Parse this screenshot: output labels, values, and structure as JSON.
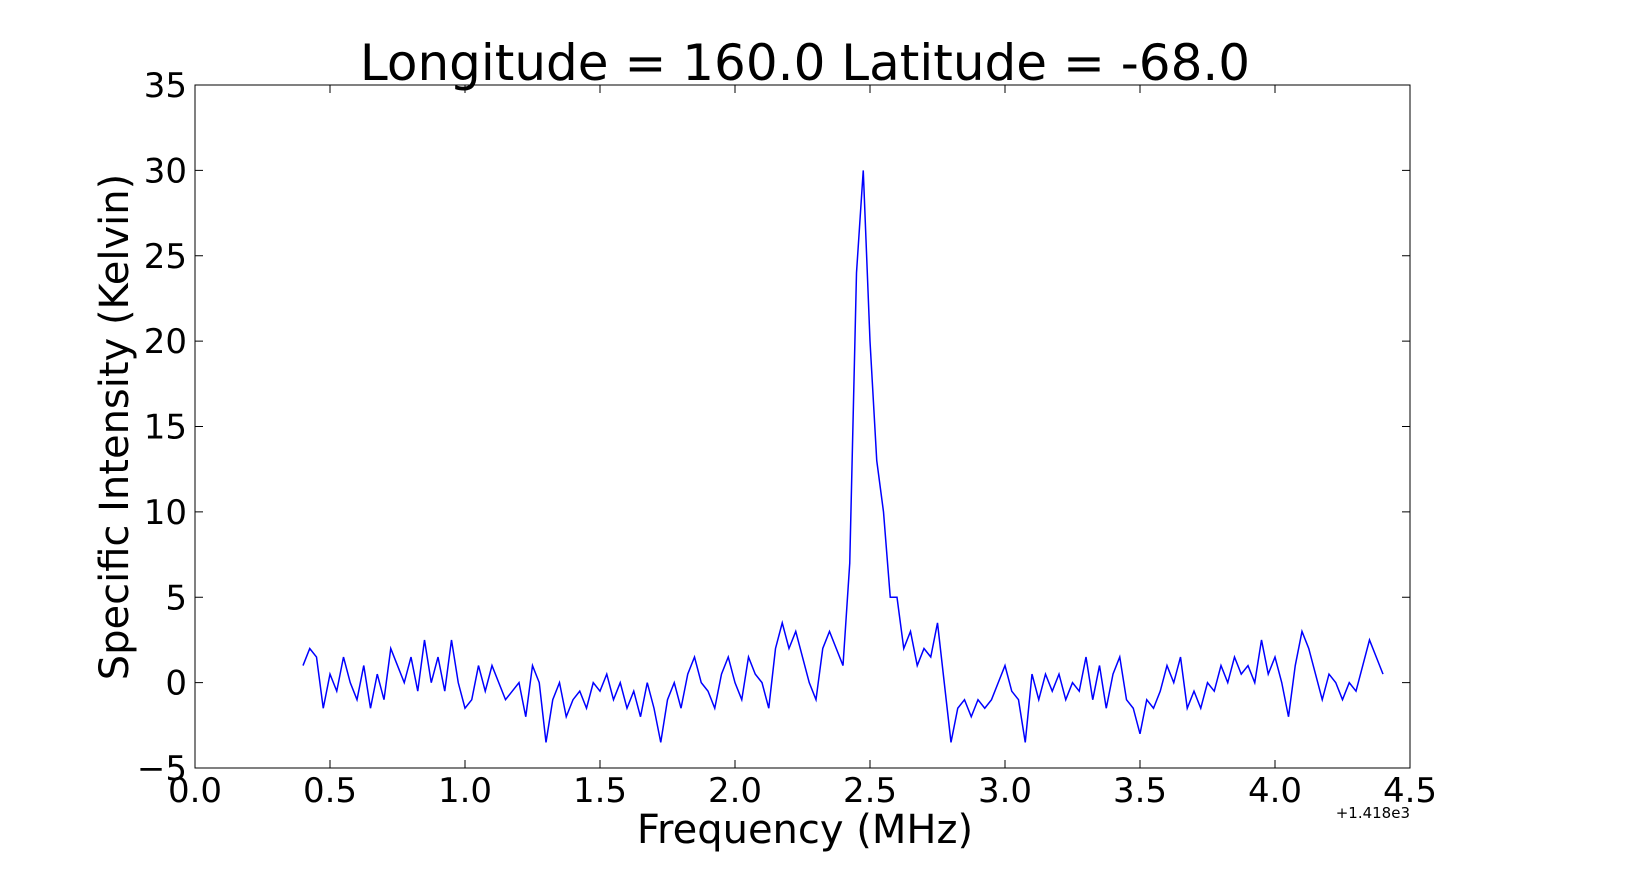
{
  "chart_data": {
    "type": "line",
    "title": "Longitude = 160.0 Latitude = -68.0",
    "x_label": "Frequency (MHz)",
    "y_label": "Specific Intensity (Kelvin)",
    "x_offset_label": "+1.418e3",
    "x": [
      0.4,
      0.425,
      0.45,
      0.475,
      0.5,
      0.525,
      0.55,
      0.575,
      0.6,
      0.625,
      0.65,
      0.675,
      0.7,
      0.725,
      0.75,
      0.775,
      0.8,
      0.825,
      0.85,
      0.875,
      0.9,
      0.925,
      0.95,
      0.975,
      1.0,
      1.025,
      1.05,
      1.075,
      1.1,
      1.125,
      1.15,
      1.175,
      1.2,
      1.225,
      1.25,
      1.275,
      1.3,
      1.325,
      1.35,
      1.375,
      1.4,
      1.425,
      1.45,
      1.475,
      1.5,
      1.525,
      1.55,
      1.575,
      1.6,
      1.625,
      1.65,
      1.675,
      1.7,
      1.725,
      1.75,
      1.775,
      1.8,
      1.825,
      1.85,
      1.875,
      1.9,
      1.925,
      1.95,
      1.975,
      2.0,
      2.025,
      2.05,
      2.075,
      2.1,
      2.125,
      2.15,
      2.175,
      2.2,
      2.225,
      2.25,
      2.275,
      2.3,
      2.325,
      2.35,
      2.375,
      2.4,
      2.425,
      2.45,
      2.475,
      2.5,
      2.525,
      2.55,
      2.575,
      2.6,
      2.625,
      2.65,
      2.675,
      2.7,
      2.725,
      2.75,
      2.775,
      2.8,
      2.825,
      2.85,
      2.875,
      2.9,
      2.925,
      2.95,
      2.975,
      3.0,
      3.025,
      3.05,
      3.075,
      3.1,
      3.125,
      3.15,
      3.175,
      3.2,
      3.225,
      3.25,
      3.275,
      3.3,
      3.325,
      3.35,
      3.375,
      3.4,
      3.425,
      3.45,
      3.475,
      3.5,
      3.525,
      3.55,
      3.575,
      3.6,
      3.625,
      3.65,
      3.675,
      3.7,
      3.725,
      3.75,
      3.775,
      3.8,
      3.825,
      3.85,
      3.875,
      3.9,
      3.925,
      3.95,
      3.975,
      4.0,
      4.025,
      4.05,
      4.075,
      4.1,
      4.125,
      4.15,
      4.175,
      4.2,
      4.225,
      4.25,
      4.275,
      4.3,
      4.325,
      4.35,
      4.375,
      4.4
    ],
    "series": [
      {
        "color": "#0000ff",
        "values": [
          1,
          2,
          1.5,
          -1.5,
          0.5,
          -0.5,
          1.5,
          0,
          -1,
          1,
          -1.5,
          0.5,
          -1,
          2,
          1,
          0,
          1.5,
          -0.5,
          2.5,
          0,
          1.5,
          -0.5,
          2.5,
          0,
          -1.5,
          -1,
          1,
          -0.5,
          1,
          0,
          -1,
          -0.5,
          0,
          -2,
          1,
          0,
          -3.5,
          -1,
          0,
          -2,
          -1,
          -0.5,
          -1.5,
          0,
          -0.5,
          0.5,
          -1,
          0,
          -1.5,
          -0.5,
          -2,
          0,
          -1.5,
          -3.5,
          -1,
          0,
          -1.5,
          0.5,
          1.5,
          0,
          -0.5,
          -1.5,
          0.5,
          1.5,
          0,
          -1,
          1.5,
          0.5,
          0,
          -1.5,
          2,
          3.5,
          2,
          3,
          1.5,
          0,
          -1,
          2,
          3,
          2,
          1,
          7,
          24,
          30,
          20,
          13,
          10,
          5,
          5,
          2,
          3,
          1,
          2,
          1.5,
          3.5,
          0,
          -3.5,
          -1.5,
          -1,
          -2,
          -1,
          -1.5,
          -1,
          0,
          1,
          -0.5,
          -1,
          -3.5,
          0.5,
          -1,
          0.5,
          -0.5,
          0.5,
          -1,
          0,
          -0.5,
          1.5,
          -1,
          1,
          -1.5,
          0.5,
          1.5,
          -1,
          -1.5,
          -3,
          -1,
          -1.5,
          -0.5,
          1,
          0,
          1.5,
          -1.5,
          -0.5,
          -1.5,
          0,
          -0.5,
          1,
          0,
          1.5,
          0.5,
          1,
          0,
          2.5,
          0.5,
          1.5,
          0,
          -2,
          1,
          3,
          2,
          0.5,
          -1,
          0.5,
          0,
          -1,
          0,
          -0.5,
          1,
          2.5,
          1.5,
          0.5
        ]
      }
    ],
    "xlim": [
      0,
      4.5
    ],
    "ylim": [
      -5,
      35
    ],
    "xticks": [
      {
        "value": 0,
        "label": "0.0"
      },
      {
        "value": 0.5,
        "label": "0.5"
      },
      {
        "value": 1,
        "label": "1.0"
      },
      {
        "value": 1.5,
        "label": "1.5"
      },
      {
        "value": 2,
        "label": "2.0"
      },
      {
        "value": 2.5,
        "label": "2.5"
      },
      {
        "value": 3,
        "label": "3.0"
      },
      {
        "value": 3.5,
        "label": "3.5"
      },
      {
        "value": 4,
        "label": "4.0"
      },
      {
        "value": 4.5,
        "label": "4.5"
      }
    ],
    "yticks": [
      {
        "value": -5,
        "label": "−5"
      },
      0,
      5,
      10,
      15,
      20,
      25,
      30,
      35
    ],
    "grid": false
  }
}
